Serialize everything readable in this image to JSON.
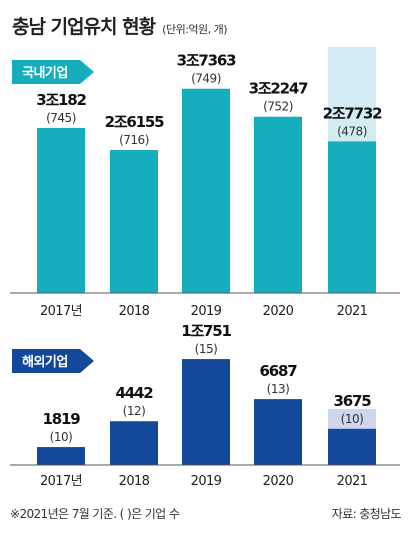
{
  "title": "충남 기업유치 현황",
  "unit": "(단위:억원, 개)",
  "footnote": "※2021년은 7월 기준. ( )은 기업 수",
  "source": "자료: 충청남도",
  "colors": {
    "domestic": "#16aebd",
    "domestic_light": "#d3ecf3",
    "domestic_tag": "#16aebd",
    "overseas": "#14489a",
    "overseas_light": "#cfd7ee",
    "overseas_tag": "#14489a"
  },
  "chart_data": [
    {
      "type": "bar",
      "tag": "국내기업",
      "categories": [
        "2017년",
        "2018",
        "2019",
        "2020",
        "2021"
      ],
      "values": [
        30182,
        26155,
        37363,
        32247,
        27732
      ],
      "value_labels": [
        "3조182",
        "2조6155",
        "3조7363",
        "3조2247",
        "2조7732"
      ],
      "counts": [
        745,
        716,
        749,
        752,
        478
      ],
      "count_labels": [
        "(745)",
        "(716)",
        "(749)",
        "(752)",
        "(478)"
      ],
      "ylim": [
        0,
        45000
      ],
      "partial_last_background": true
    },
    {
      "type": "bar",
      "tag": "해외기업",
      "categories": [
        "2017년",
        "2018",
        "2019",
        "2020",
        "2021"
      ],
      "values": [
        1819,
        4442,
        10751,
        6687,
        3675
      ],
      "value_labels": [
        "1819",
        "4442",
        "1조751",
        "6687",
        "3675"
      ],
      "counts": [
        10,
        12,
        15,
        13,
        10
      ],
      "count_labels": [
        "(10)",
        "(12)",
        "(15)",
        "(13)",
        "(10)"
      ],
      "ylim": [
        0,
        13500
      ],
      "partial_last_background": true
    }
  ]
}
